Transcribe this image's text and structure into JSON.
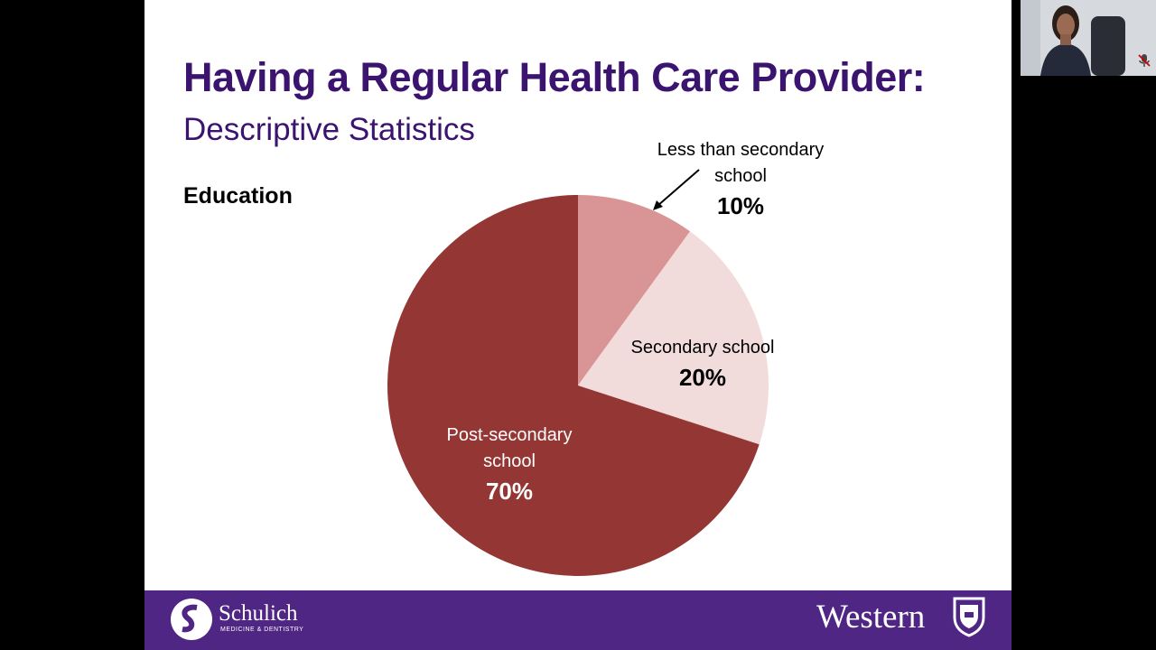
{
  "slide": {
    "title": "Having a Regular Health Care Provider:",
    "subtitle": "Descriptive Statistics",
    "section_label": "Education"
  },
  "chart_data": {
    "type": "pie",
    "title": "Education",
    "slices": [
      {
        "name": "Less than secondary school",
        "label_line1": "Less than secondary",
        "label_line2": "school",
        "pct_label": "10%",
        "value": 10,
        "color": "#d99595"
      },
      {
        "name": "Secondary school",
        "label_line1": "Secondary school",
        "label_line2": "",
        "pct_label": "20%",
        "value": 20,
        "color": "#f2dcdb"
      },
      {
        "name": "Post-secondary school",
        "label_line1": "Post-secondary",
        "label_line2": "school",
        "pct_label": "70%",
        "value": 70,
        "color": "#943634"
      }
    ]
  },
  "footer": {
    "left_logo_name": "Schulich",
    "left_logo_sub": "MEDICINE & DENTISTRY",
    "right_logo_name": "Western",
    "color": "#4f2683"
  },
  "webcam": {
    "icon": "microphone-muted-icon"
  },
  "colors": {
    "title": "#3b1470",
    "background": "#000000",
    "slide": "#ffffff"
  }
}
